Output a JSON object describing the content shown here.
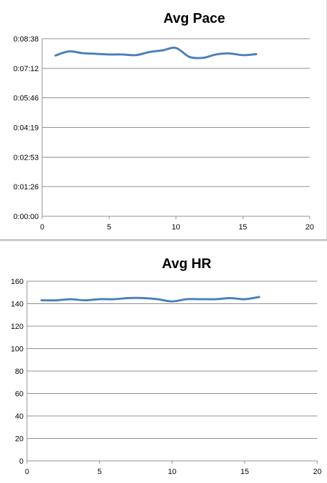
{
  "chart_data": [
    {
      "type": "line",
      "title": "Avg Pace",
      "xlabel": "",
      "ylabel": "",
      "xlim": [
        0,
        20
      ],
      "x_ticks": [
        "0",
        "5",
        "10",
        "15",
        "20"
      ],
      "y_unit": "seconds",
      "ylim": [
        0,
        518
      ],
      "y_ticks": [
        "0:00:00",
        "0:01:26",
        "0:02:53",
        "0:04:19",
        "0:05:46",
        "0:07:12",
        "0:08:38"
      ],
      "grid": true,
      "series": [
        {
          "color": "#4a7ebb",
          "x": [
            1,
            2,
            3,
            4,
            5,
            6,
            7,
            8,
            9,
            10,
            11,
            12,
            13,
            14,
            15,
            16
          ],
          "values": [
            469,
            481,
            476,
            474,
            472,
            472,
            470,
            479,
            484,
            491,
            465,
            462,
            472,
            475,
            470,
            473
          ]
        }
      ]
    },
    {
      "type": "line",
      "title": "Avg HR",
      "xlabel": "",
      "ylabel": "",
      "xlim": [
        0,
        20
      ],
      "x_ticks": [
        "0",
        "5",
        "10",
        "15",
        "20"
      ],
      "ylim": [
        0,
        160
      ],
      "y_ticks": [
        "0",
        "20",
        "40",
        "60",
        "80",
        "100",
        "120",
        "140",
        "160"
      ],
      "grid": true,
      "series": [
        {
          "color": "#4a7ebb",
          "x": [
            1,
            2,
            3,
            4,
            5,
            6,
            7,
            8,
            9,
            10,
            11,
            12,
            13,
            14,
            15,
            16
          ],
          "values": [
            143,
            143,
            144,
            143,
            144,
            144,
            145,
            145,
            144,
            142,
            144,
            144,
            144,
            145,
            144,
            146
          ]
        }
      ]
    }
  ]
}
